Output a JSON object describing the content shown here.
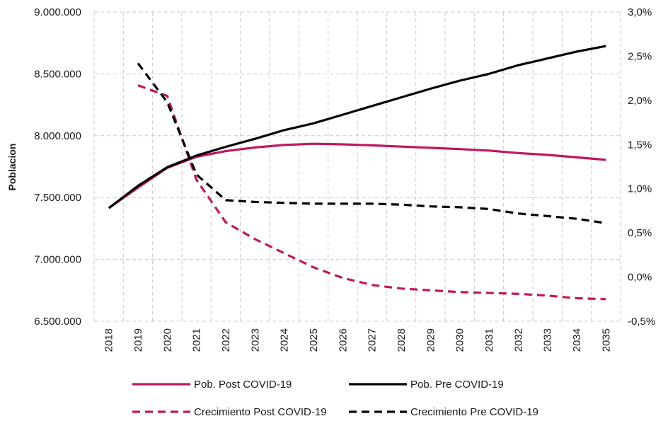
{
  "chart_data": {
    "type": "line",
    "title": "",
    "xlabel": "",
    "ylabel": "Poblacion",
    "y2label": "",
    "categories": [
      "2018",
      "2019",
      "2020",
      "2021",
      "2022",
      "2023",
      "2024",
      "2025",
      "2026",
      "2027",
      "2028",
      "2029",
      "2030",
      "2031",
      "2032",
      "2033",
      "2034",
      "2035"
    ],
    "ylim": [
      6500000,
      9000000
    ],
    "y_ticks": [
      "6.500.000",
      "7.000.000",
      "7.500.000",
      "8.000.000",
      "8.500.000",
      "9.000.000"
    ],
    "y_tick_values": [
      6500000,
      7000000,
      7500000,
      8000000,
      8500000,
      9000000
    ],
    "y2lim": [
      -0.5,
      3.0
    ],
    "y2_ticks": [
      "-0,5%",
      "0,0%",
      "0,5%",
      "1,0%",
      "1,5%",
      "2,0%",
      "2,5%",
      "3,0%"
    ],
    "y2_tick_values": [
      -0.5,
      0.0,
      0.5,
      1.0,
      1.5,
      2.0,
      2.5,
      3.0
    ],
    "grid": true,
    "legend_position": "bottom",
    "series": [
      {
        "name": "Pob. Post COVID-19",
        "axis": "left",
        "style": "solid",
        "color": "#c0175d",
        "values": [
          7415000,
          7580000,
          7740000,
          7830000,
          7875000,
          7905000,
          7925000,
          7935000,
          7930000,
          7922000,
          7912000,
          7902000,
          7892000,
          7880000,
          7860000,
          7845000,
          7825000,
          7805000
        ]
      },
      {
        "name": "Pob. Pre COVID-19",
        "axis": "left",
        "style": "solid",
        "color": "#000000",
        "values": [
          7415000,
          7595000,
          7745000,
          7840000,
          7910000,
          7975000,
          8045000,
          8100000,
          8170000,
          8240000,
          8310000,
          8380000,
          8445000,
          8500000,
          8570000,
          8625000,
          8680000,
          8725000
        ]
      },
      {
        "name": "Crecimiento Post COVID-19",
        "axis": "right",
        "style": "dashed",
        "color": "#c0175d",
        "values": [
          null,
          2.17,
          2.05,
          1.1,
          0.62,
          0.43,
          0.27,
          0.11,
          -0.01,
          -0.09,
          -0.13,
          -0.15,
          -0.17,
          -0.18,
          -0.19,
          -0.21,
          -0.24,
          -0.25
        ]
      },
      {
        "name": "Crecimiento Pre COVID-19",
        "axis": "right",
        "style": "dashed",
        "color": "#000000",
        "values": [
          null,
          2.42,
          1.98,
          1.16,
          0.87,
          0.85,
          0.84,
          0.83,
          0.83,
          0.83,
          0.82,
          0.8,
          0.79,
          0.77,
          0.72,
          0.69,
          0.66,
          0.61
        ]
      }
    ]
  }
}
